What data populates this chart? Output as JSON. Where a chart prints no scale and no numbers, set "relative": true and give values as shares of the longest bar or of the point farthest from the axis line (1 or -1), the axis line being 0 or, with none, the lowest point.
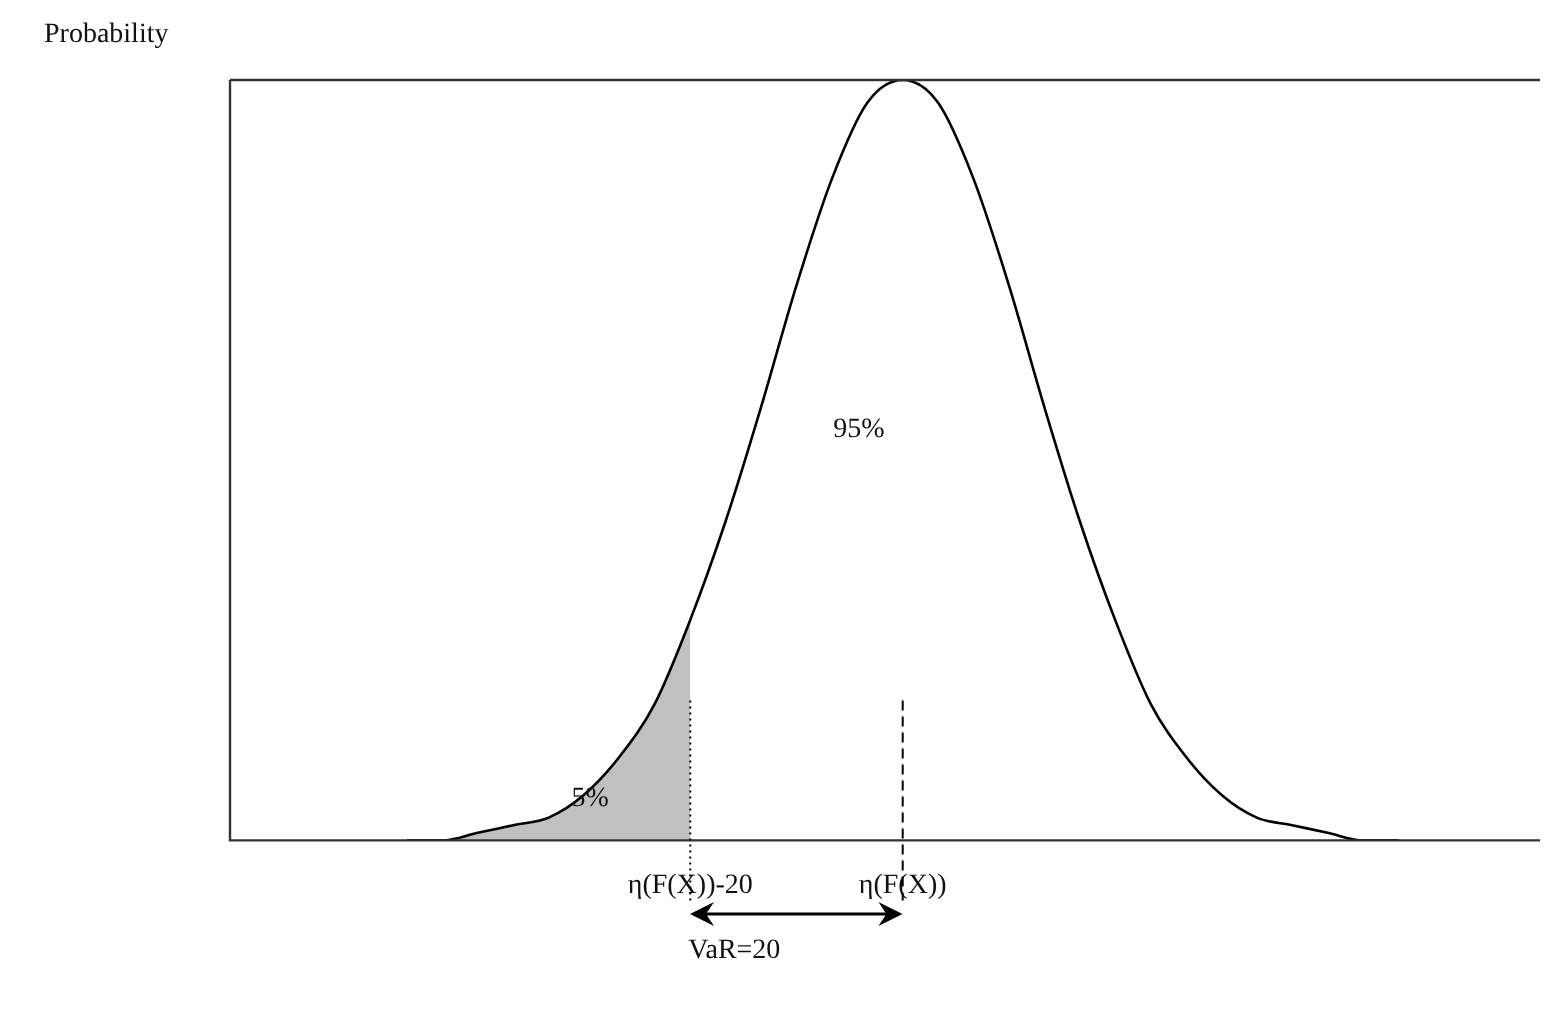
{
  "chart_data": {
    "type": "line",
    "relative": true,
    "ylabel": "Probability",
    "categories": [
      null,
      null,
      null,
      null,
      null,
      null,
      null,
      null,
      null,
      null,
      null,
      null,
      null,
      "η(F(X))-20",
      null,
      null,
      null,
      null,
      null,
      "η(F(X))",
      null,
      null,
      null,
      null,
      null,
      null,
      null,
      null,
      null,
      null,
      null,
      null,
      null,
      null,
      null,
      null,
      null,
      null
    ],
    "series": [
      {
        "type": "area",
        "color": "#c0c0c0",
        "values": [
          null,
          null,
          null,
          null,
          null,
          0,
          0,
          0.01,
          0.02,
          0.03,
          0.06,
          0.11,
          0.18,
          0.29,
          null,
          null,
          null,
          null,
          null,
          null,
          null,
          null,
          null,
          null,
          null,
          null,
          null,
          null,
          null,
          null,
          null,
          null,
          null,
          null,
          null,
          null,
          null,
          null
        ]
      },
      {
        "type": "line",
        "color": "#000000",
        "values": [
          null,
          null,
          null,
          null,
          null,
          0,
          0,
          0.01,
          0.02,
          0.03,
          0.06,
          0.11,
          0.18,
          0.29,
          0.42,
          0.57,
          0.73,
          0.87,
          0.97,
          1,
          0.97,
          0.87,
          0.73,
          0.57,
          0.42,
          0.29,
          0.18,
          0.11,
          0.06,
          0.03,
          0.02,
          0.01,
          0,
          0,
          null,
          null,
          null,
          null
        ]
      }
    ],
    "ref_lines": [
      {
        "axis": "x",
        "value": "η(F(X))-20",
        "line_style": "dotted"
      },
      {
        "axis": "x",
        "value": "η(F(X))",
        "line_style": "dashed"
      }
    ],
    "annotations": [
      "95%",
      "5%",
      "VaR=20"
    ],
    "marker": "none",
    "line_style": "solid",
    "grid": false,
    "legend": false,
    "tick_labels": "x"
  }
}
